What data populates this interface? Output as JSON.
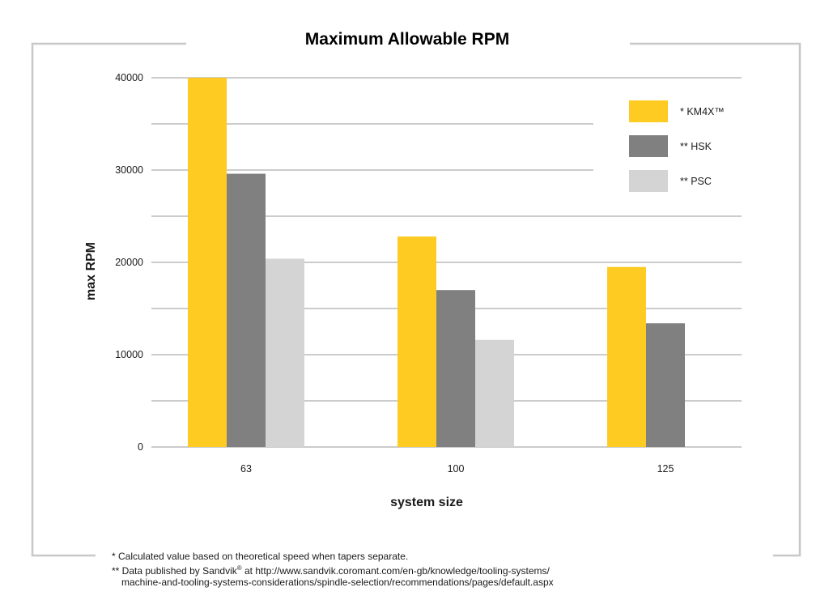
{
  "chart_data": {
    "type": "bar",
    "title": "Maximum Allowable RPM",
    "xlabel": "system size",
    "ylabel": "max RPM",
    "categories": [
      "63",
      "100",
      "125"
    ],
    "series": [
      {
        "name": "* KM4X™",
        "color": "#fecb23",
        "values": [
          40000,
          22800,
          19500
        ]
      },
      {
        "name": "** HSK",
        "color": "#808080",
        "values": [
          29600,
          17000,
          13400
        ]
      },
      {
        "name": "** PSC",
        "color": "#d4d4d4",
        "values": [
          20400,
          11600,
          null
        ]
      }
    ],
    "ylim": [
      0,
      40000
    ],
    "yticks": [
      0,
      10000,
      20000,
      30000,
      40000
    ],
    "grid": true,
    "legend_position": "top-right"
  },
  "footnotes": {
    "note1": "*  Calculated value based on theoretical speed when tapers separate.",
    "note2_prefix": "** Data published by Sandvik",
    "note2_reg": "®",
    "note2_rest": " at http://www.sandvik.coromant.com/en-gb/knowledge/tooling-systems/",
    "note2_cont": "machine-and-tooling-systems-considerations/spindle-selection/recommendations/pages/default.aspx"
  }
}
